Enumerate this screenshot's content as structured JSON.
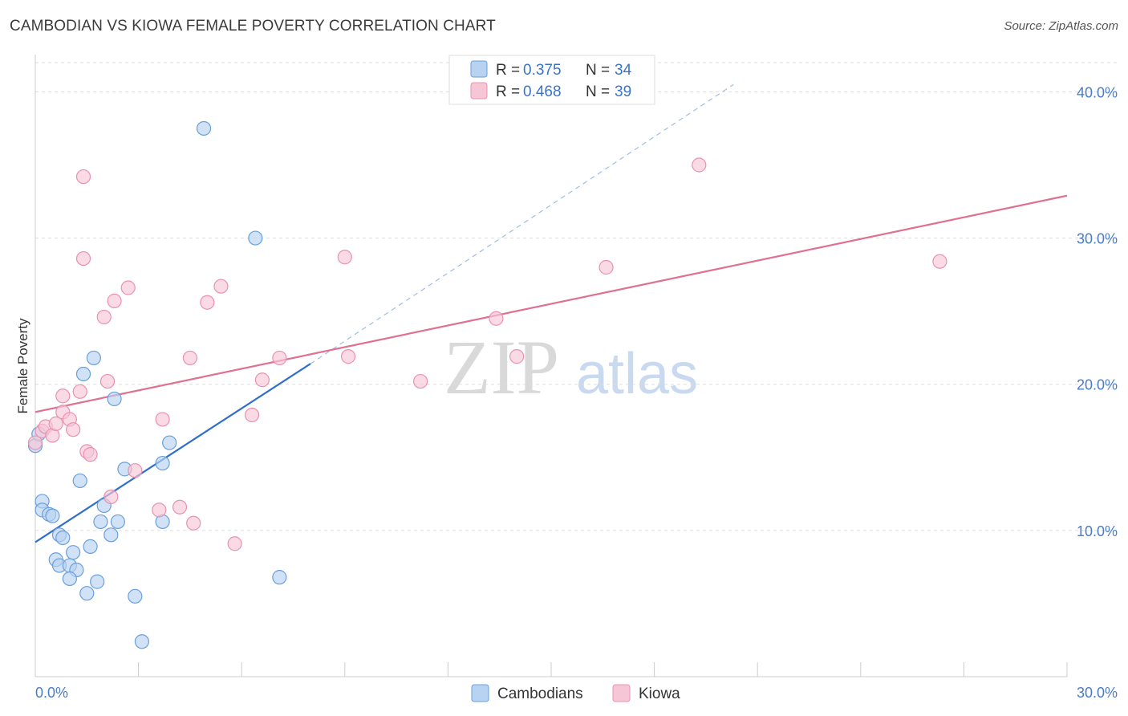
{
  "title": "CAMBODIAN VS KIOWA FEMALE POVERTY CORRELATION CHART",
  "source": "Source: ZipAtlas.com",
  "watermark": {
    "zip": "ZIP",
    "atlas": "atlas"
  },
  "colors": {
    "cambodian_fill": "#b8d3f2",
    "cambodian_stroke": "#6a9fdb",
    "cambodian_line": "#2f6fcc",
    "kiowa_fill": "#f7c6d6",
    "kiowa_stroke": "#e892b0",
    "kiowa_line": "#e0708f",
    "grid": "#dddddd",
    "tick_label": "#4a7cc7"
  },
  "chart_data": {
    "type": "scatter",
    "title": "CAMBODIAN VS KIOWA FEMALE POVERTY CORRELATION CHART",
    "xlabel": "",
    "ylabel": "Female Poverty",
    "xlim": [
      0,
      30
    ],
    "ylim": [
      0,
      42
    ],
    "x_tick_labels": {
      "min": "0.0%",
      "max": "30.0%"
    },
    "y_ticks": [
      10,
      20,
      30,
      40
    ],
    "y_tick_labels": [
      "10.0%",
      "20.0%",
      "30.0%",
      "40.0%"
    ],
    "legend": [
      {
        "name": "Cambodians",
        "r_label": "R =",
        "r": "0.375",
        "n_label": "N =",
        "n": "34"
      },
      {
        "name": "Kiowa",
        "r_label": "R =",
        "r": "0.468",
        "n_label": "N =",
        "n": "39"
      }
    ],
    "series": [
      {
        "name": "Cambodians",
        "points": [
          [
            0.0,
            15.8
          ],
          [
            0.2,
            12.0
          ],
          [
            0.2,
            11.4
          ],
          [
            0.4,
            11.1
          ],
          [
            0.5,
            11.0
          ],
          [
            0.7,
            9.7
          ],
          [
            0.8,
            9.5
          ],
          [
            0.6,
            8.0
          ],
          [
            0.7,
            7.6
          ],
          [
            1.0,
            7.6
          ],
          [
            1.2,
            7.3
          ],
          [
            1.0,
            6.7
          ],
          [
            1.1,
            8.5
          ],
          [
            1.6,
            8.9
          ],
          [
            1.5,
            5.7
          ],
          [
            1.8,
            6.5
          ],
          [
            1.9,
            10.6
          ],
          [
            2.0,
            11.7
          ],
          [
            2.2,
            9.7
          ],
          [
            2.4,
            10.6
          ],
          [
            2.6,
            14.2
          ],
          [
            2.9,
            5.5
          ],
          [
            3.1,
            2.4
          ],
          [
            3.7,
            10.6
          ],
          [
            3.7,
            14.6
          ],
          [
            3.9,
            16.0
          ],
          [
            1.3,
            13.4
          ],
          [
            1.4,
            20.7
          ],
          [
            1.7,
            21.8
          ],
          [
            2.3,
            19.0
          ],
          [
            4.9,
            37.5
          ],
          [
            6.4,
            30.0
          ],
          [
            7.1,
            6.8
          ],
          [
            0.1,
            16.6
          ]
        ],
        "trend": {
          "x": [
            0.0,
            8.0
          ],
          "y": [
            9.2,
            21.4
          ]
        },
        "trend_extension": {
          "x": [
            8.0,
            20.3
          ],
          "y": [
            21.4,
            40.5
          ]
        }
      },
      {
        "name": "Kiowa",
        "points": [
          [
            0.0,
            16.0
          ],
          [
            0.2,
            16.8
          ],
          [
            0.3,
            17.1
          ],
          [
            0.5,
            16.5
          ],
          [
            0.6,
            17.3
          ],
          [
            0.8,
            19.2
          ],
          [
            0.8,
            18.1
          ],
          [
            1.0,
            17.6
          ],
          [
            1.1,
            16.9
          ],
          [
            1.3,
            19.5
          ],
          [
            1.5,
            15.4
          ],
          [
            1.6,
            15.2
          ],
          [
            1.4,
            34.2
          ],
          [
            1.4,
            28.6
          ],
          [
            2.0,
            24.6
          ],
          [
            2.1,
            20.2
          ],
          [
            2.2,
            12.3
          ],
          [
            2.3,
            25.7
          ],
          [
            2.7,
            26.6
          ],
          [
            2.9,
            14.1
          ],
          [
            3.6,
            11.4
          ],
          [
            3.7,
            17.6
          ],
          [
            4.2,
            11.6
          ],
          [
            4.5,
            21.8
          ],
          [
            4.6,
            10.5
          ],
          [
            5.0,
            25.6
          ],
          [
            5.4,
            26.7
          ],
          [
            5.8,
            9.1
          ],
          [
            6.3,
            17.9
          ],
          [
            6.6,
            20.3
          ],
          [
            7.1,
            21.8
          ],
          [
            9.0,
            28.7
          ],
          [
            9.1,
            21.9
          ],
          [
            11.2,
            20.2
          ],
          [
            13.4,
            24.5
          ],
          [
            14.0,
            21.9
          ],
          [
            16.6,
            28.0
          ],
          [
            19.3,
            35.0
          ],
          [
            26.3,
            28.4
          ]
        ],
        "trend": {
          "x": [
            0.0,
            30.0
          ],
          "y": [
            18.1,
            32.9
          ]
        }
      }
    ]
  }
}
